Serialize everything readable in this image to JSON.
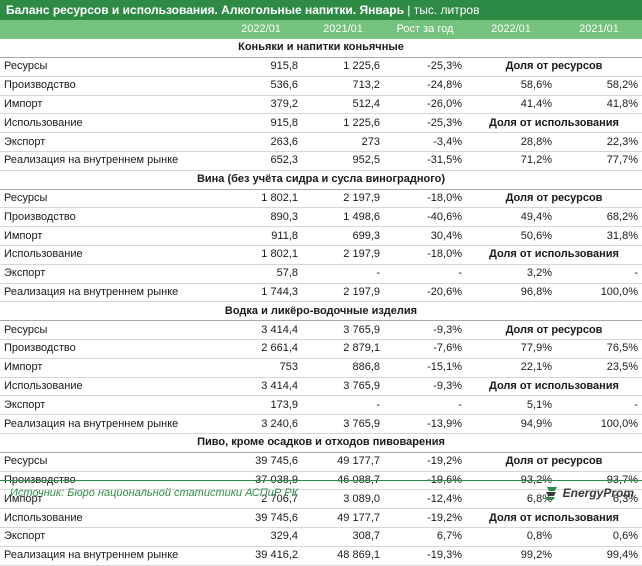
{
  "title": {
    "main": "Баланс ресурсов и использования. Алкогольные напитки. Январь",
    "separator": "|",
    "unit": "тыс. литров"
  },
  "columns": [
    "",
    "2022/01",
    "2021/01",
    "Рост за год",
    "2022/01",
    "2021/01"
  ],
  "sections": [
    {
      "name": "Коньяки и напитки коньячные",
      "resources": {
        "label": "Ресурсы",
        "v2022": "915,8",
        "v2021": "1 225,6",
        "growth": "-25,3%",
        "share_label": "Доля от ресурсов"
      },
      "production": {
        "label": "Производство",
        "v2022": "536,6",
        "v2021": "713,2",
        "growth": "-24,8%",
        "s2022": "58,6%",
        "s2021": "58,2%"
      },
      "import": {
        "label": "Импорт",
        "v2022": "379,2",
        "v2021": "512,4",
        "growth": "-26,0%",
        "s2022": "41,4%",
        "s2021": "41,8%"
      },
      "usage": {
        "label": "Использование",
        "v2022": "915,8",
        "v2021": "1 225,6",
        "growth": "-25,3%",
        "share_label": "Доля от использования"
      },
      "export": {
        "label": "Экспорт",
        "v2022": "263,6",
        "v2021": "273",
        "growth": "-3,4%",
        "s2022": "28,8%",
        "s2021": "22,3%"
      },
      "domestic": {
        "label": "Реализация на внутреннем рынке",
        "v2022": "652,3",
        "v2021": "952,5",
        "growth": "-31,5%",
        "s2022": "71,2%",
        "s2021": "77,7%"
      }
    },
    {
      "name": "Вина (без учёта сидра и сусла виноградного)",
      "resources": {
        "label": "Ресурсы",
        "v2022": "1 802,1",
        "v2021": "2 197,9",
        "growth": "-18,0%",
        "share_label": "Доля от ресурсов"
      },
      "production": {
        "label": "Производство",
        "v2022": "890,3",
        "v2021": "1 498,6",
        "growth": "-40,6%",
        "s2022": "49,4%",
        "s2021": "68,2%"
      },
      "import": {
        "label": "Импорт",
        "v2022": "911,8",
        "v2021": "699,3",
        "growth": "30,4%",
        "s2022": "50,6%",
        "s2021": "31,8%"
      },
      "usage": {
        "label": "Использование",
        "v2022": "1 802,1",
        "v2021": "2 197,9",
        "growth": "-18,0%",
        "share_label": "Доля от использования"
      },
      "export": {
        "label": "Экспорт",
        "v2022": "57,8",
        "v2021": "-",
        "growth": "-",
        "s2022": "3,2%",
        "s2021": "-"
      },
      "domestic": {
        "label": "Реализация на внутреннем рынке",
        "v2022": "1 744,3",
        "v2021": "2 197,9",
        "growth": "-20,6%",
        "s2022": "96,8%",
        "s2021": "100,0%"
      }
    },
    {
      "name": "Водка и ликёро-водочные изделия",
      "resources": {
        "label": "Ресурсы",
        "v2022": "3 414,4",
        "v2021": "3 765,9",
        "growth": "-9,3%",
        "share_label": "Доля от ресурсов"
      },
      "production": {
        "label": "Производство",
        "v2022": "2 661,4",
        "v2021": "2 879,1",
        "growth": "-7,6%",
        "s2022": "77,9%",
        "s2021": "76,5%"
      },
      "import": {
        "label": "Импорт",
        "v2022": "753",
        "v2021": "886,8",
        "growth": "-15,1%",
        "s2022": "22,1%",
        "s2021": "23,5%"
      },
      "usage": {
        "label": "Использование",
        "v2022": "3 414,4",
        "v2021": "3 765,9",
        "growth": "-9,3%",
        "share_label": "Доля от использования"
      },
      "export": {
        "label": "Экспорт",
        "v2022": "173,9",
        "v2021": "-",
        "growth": "-",
        "s2022": "5,1%",
        "s2021": "-"
      },
      "domestic": {
        "label": "Реализация на внутреннем рынке",
        "v2022": "3 240,6",
        "v2021": "3 765,9",
        "growth": "-13,9%",
        "s2022": "94,9%",
        "s2021": "100,0%"
      }
    },
    {
      "name": "Пиво, кроме осадков и отходов пивоварения",
      "resources": {
        "label": "Ресурсы",
        "v2022": "39 745,6",
        "v2021": "49 177,7",
        "growth": "-19,2%",
        "share_label": "Доля от ресурсов"
      },
      "production": {
        "label": "Производство",
        "v2022": "37 038,9",
        "v2021": "46 088,7",
        "growth": "-19,6%",
        "s2022": "93,2%",
        "s2021": "93,7%"
      },
      "import": {
        "label": "Импорт",
        "v2022": "2 706,7",
        "v2021": "3 089,0",
        "growth": "-12,4%",
        "s2022": "6,8%",
        "s2021": "6,3%"
      },
      "usage": {
        "label": "Использование",
        "v2022": "39 745,6",
        "v2021": "49 177,7",
        "growth": "-19,2%",
        "share_label": "Доля от использования"
      },
      "export": {
        "label": "Экспорт",
        "v2022": "329,4",
        "v2021": "308,7",
        "growth": "6,7%",
        "s2022": "0,8%",
        "s2021": "0,6%"
      },
      "domestic": {
        "label": "Реализация на внутреннем рынке",
        "v2022": "39 416,2",
        "v2021": "48 869,1",
        "growth": "-19,3%",
        "s2022": "99,2%",
        "s2021": "99,4%"
      }
    }
  ],
  "footer": {
    "source": "Источник: Бюро национальной статистики АСПиР РК",
    "logo": "EnergyProm"
  },
  "colors": {
    "title_bg": "#2e8b45",
    "header_bg": "#74c27d",
    "footer_text": "#2e8b45"
  },
  "icons": {
    "logo": "energyprom-logo-icon"
  }
}
